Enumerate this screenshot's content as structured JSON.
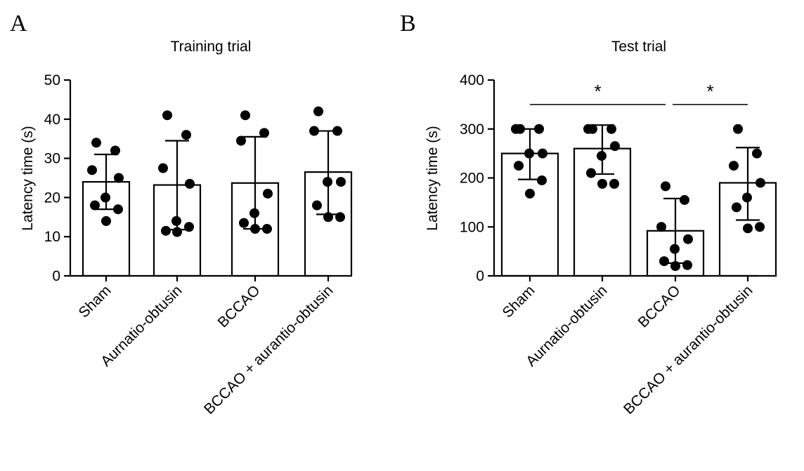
{
  "chart_data": [
    {
      "type": "bar",
      "panel": "A",
      "title": "Training trial",
      "xlabel": "",
      "ylabel": "Latency time (s)",
      "ylim": [
        0,
        50
      ],
      "yticks": [
        0,
        10,
        20,
        30,
        40,
        50
      ],
      "tick_labels": [
        "0",
        "10",
        "20",
        "30",
        "40",
        "50"
      ],
      "categories": [
        "Sham",
        "Aurnatio-obtusin",
        "BCCAO",
        "BCCAO + aurantio-obtusin"
      ],
      "values": [
        24,
        23.2,
        23.7,
        26.5
      ],
      "error_upper": [
        31,
        34.5,
        35.5,
        37
      ],
      "error_lower": [
        17,
        11.8,
        12,
        15.7
      ],
      "points": [
        [
          34,
          32,
          27,
          25,
          20,
          18,
          17,
          14
        ],
        [
          41,
          36,
          27.5,
          23.5,
          14,
          11.5,
          12.5,
          11.2
        ],
        [
          41,
          36.5,
          34.5,
          21,
          16,
          13.5,
          12,
          12
        ],
        [
          42,
          37,
          37,
          24,
          24,
          18,
          15,
          15
        ]
      ],
      "significance": []
    },
    {
      "type": "bar",
      "panel": "B",
      "title": "Test trial",
      "xlabel": "",
      "ylabel": "Latency time (s)",
      "ylim": [
        0,
        400
      ],
      "yticks": [
        0,
        100,
        200,
        300,
        400
      ],
      "tick_labels": [
        "0",
        "100",
        "200",
        "300",
        "400"
      ],
      "categories": [
        "Sham",
        "Aurnatio-obtusin",
        "BCCAO",
        "BCCAO + aurantio-obtusin"
      ],
      "values": [
        250,
        260,
        92,
        190
      ],
      "error_upper": [
        300,
        308,
        158,
        262
      ],
      "error_lower": [
        197,
        208,
        26,
        114
      ],
      "points": [
        [
          300,
          300,
          300,
          250,
          250,
          225,
          195,
          168
        ],
        [
          300,
          300,
          300,
          265,
          245,
          210,
          188,
          188
        ],
        [
          183,
          155,
          100,
          75,
          55,
          30,
          22,
          20
        ],
        [
          300,
          250,
          225,
          190,
          160,
          140,
          100,
          97
        ]
      ],
      "significance": [
        {
          "from": 0,
          "to": 2,
          "level": 350,
          "label": "*"
        },
        {
          "from": 2,
          "to": 3,
          "level": 350,
          "label": "*"
        }
      ]
    }
  ]
}
